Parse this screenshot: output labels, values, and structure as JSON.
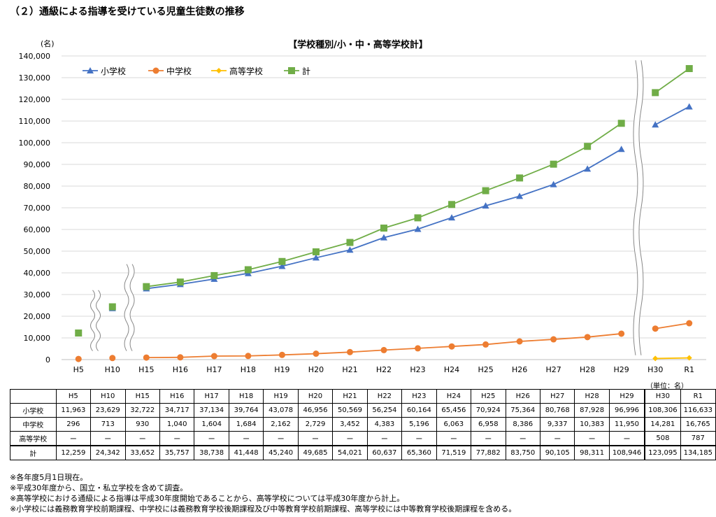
{
  "page_title": "（２）通級による指導を受けている児童生徒数の推移",
  "chart_data": {
    "type": "line",
    "title": "【学校種別/小・中・高等学校計】",
    "ylabel": "(名)",
    "ylim": [
      0,
      140000
    ],
    "yticks": [
      "0",
      "10,000",
      "20,000",
      "30,000",
      "40,000",
      "50,000",
      "60,000",
      "70,000",
      "80,000",
      "90,000",
      "100,000",
      "110,000",
      "120,000",
      "130,000",
      "140,000"
    ],
    "categories": [
      "H5",
      "H10",
      "H15",
      "H16",
      "H17",
      "H18",
      "H19",
      "H20",
      "H21",
      "H22",
      "H23",
      "H24",
      "H25",
      "H26",
      "H27",
      "H28",
      "H29",
      "H30",
      "R1"
    ],
    "legend_position": "top-left",
    "series": [
      {
        "name": "小学校",
        "color": "#4472C4",
        "marker": "triangle",
        "values": [
          11963,
          23629,
          32722,
          34717,
          37134,
          39764,
          43078,
          46956,
          50569,
          56254,
          60164,
          65456,
          70924,
          75364,
          80768,
          87928,
          96996,
          108306,
          116633
        ]
      },
      {
        "name": "中学校",
        "color": "#ED7D31",
        "marker": "circle",
        "values": [
          296,
          713,
          930,
          1040,
          1604,
          1684,
          2162,
          2729,
          3452,
          4383,
          5196,
          6063,
          6958,
          8386,
          9337,
          10383,
          11950,
          14281,
          16765
        ]
      },
      {
        "name": "高等学校",
        "color": "#FFC000",
        "marker": "diamond",
        "values": [
          null,
          null,
          null,
          null,
          null,
          null,
          null,
          null,
          null,
          null,
          null,
          null,
          null,
          null,
          null,
          null,
          null,
          508,
          787
        ]
      },
      {
        "name": "計",
        "color": "#70AD47",
        "marker": "square",
        "values": [
          12259,
          24342,
          33652,
          35757,
          38738,
          41448,
          45240,
          49685,
          54021,
          60637,
          65360,
          71519,
          77882,
          83750,
          90105,
          98311,
          108946,
          123095,
          134185
        ]
      }
    ]
  },
  "table": {
    "unit_note": "（単位：名）",
    "headers": [
      "",
      "H5",
      "H10",
      "H15",
      "H16",
      "H17",
      "H18",
      "H19",
      "H20",
      "H21",
      "H22",
      "H23",
      "H24",
      "H25",
      "H26",
      "H27",
      "H28",
      "H29",
      "H30",
      "R1"
    ],
    "rows": [
      [
        "小学校",
        "11,963",
        "23,629",
        "32,722",
        "34,717",
        "37,134",
        "39,764",
        "43,078",
        "46,956",
        "50,569",
        "56,254",
        "60,164",
        "65,456",
        "70,924",
        "75,364",
        "80,768",
        "87,928",
        "96,996",
        "108,306",
        "116,633"
      ],
      [
        "中学校",
        "296",
        "713",
        "930",
        "1,040",
        "1,604",
        "1,684",
        "2,162",
        "2,729",
        "3,452",
        "4,383",
        "5,196",
        "6,063",
        "6,958",
        "8,386",
        "9,337",
        "10,383",
        "11,950",
        "14,281",
        "16,765"
      ],
      [
        "高等学校",
        "ー",
        "ー",
        "ー",
        "ー",
        "ー",
        "ー",
        "ー",
        "ー",
        "ー",
        "ー",
        "ー",
        "ー",
        "ー",
        "ー",
        "ー",
        "ー",
        "ー",
        "508",
        "787"
      ],
      [
        "計",
        "12,259",
        "24,342",
        "33,652",
        "35,757",
        "38,738",
        "41,448",
        "45,240",
        "49,685",
        "54,021",
        "60,637",
        "65,360",
        "71,519",
        "77,882",
        "83,750",
        "90,105",
        "98,311",
        "108,946",
        "123,095",
        "134,185"
      ]
    ]
  },
  "notes": [
    "※各年度5月1日現在。",
    "※平成30年度から、国立・私立学校を含めて調査。",
    "※高等学校における通級による指導は平成30年度開始であることから、高等学校については平成30年度から計上。",
    "※小学校には義務教育学校前期課程、中学校には義務教育学校後期課程及び中等教育学校前期課程、高等学校には中等教育学校後期課程を含める。"
  ]
}
